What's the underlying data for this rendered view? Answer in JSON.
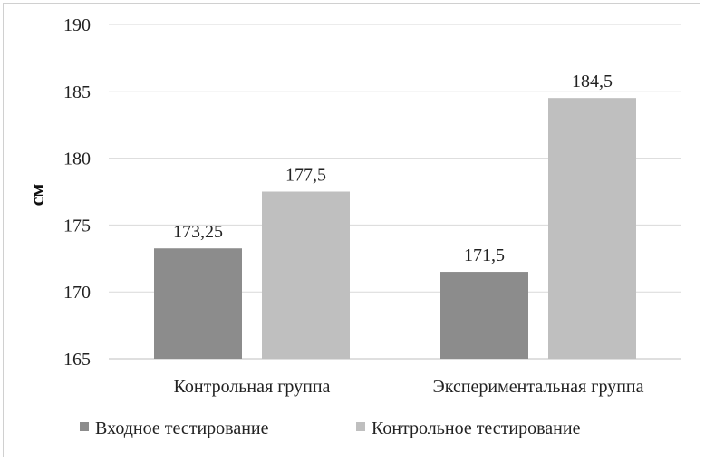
{
  "chart_data": {
    "type": "bar",
    "ylabel": "см",
    "xlabel": "",
    "title": "",
    "ylim": [
      165,
      190
    ],
    "yticks": [
      "165",
      "170",
      "175",
      "180",
      "185",
      "190"
    ],
    "grid": true,
    "legend_position": "bottom",
    "categories": [
      "Контрольная группа",
      "Экспериментальная группа"
    ],
    "series": [
      {
        "name": "Входное тестирование",
        "color": "#8c8c8c",
        "values": [
          173.25,
          171.5
        ],
        "labels": [
          "173,25",
          "171,5"
        ]
      },
      {
        "name": "Контрольное тестирование",
        "color": "#bfbfbf",
        "values": [
          177.5,
          184.5
        ],
        "labels": [
          "177,5",
          "184,5"
        ]
      }
    ]
  }
}
